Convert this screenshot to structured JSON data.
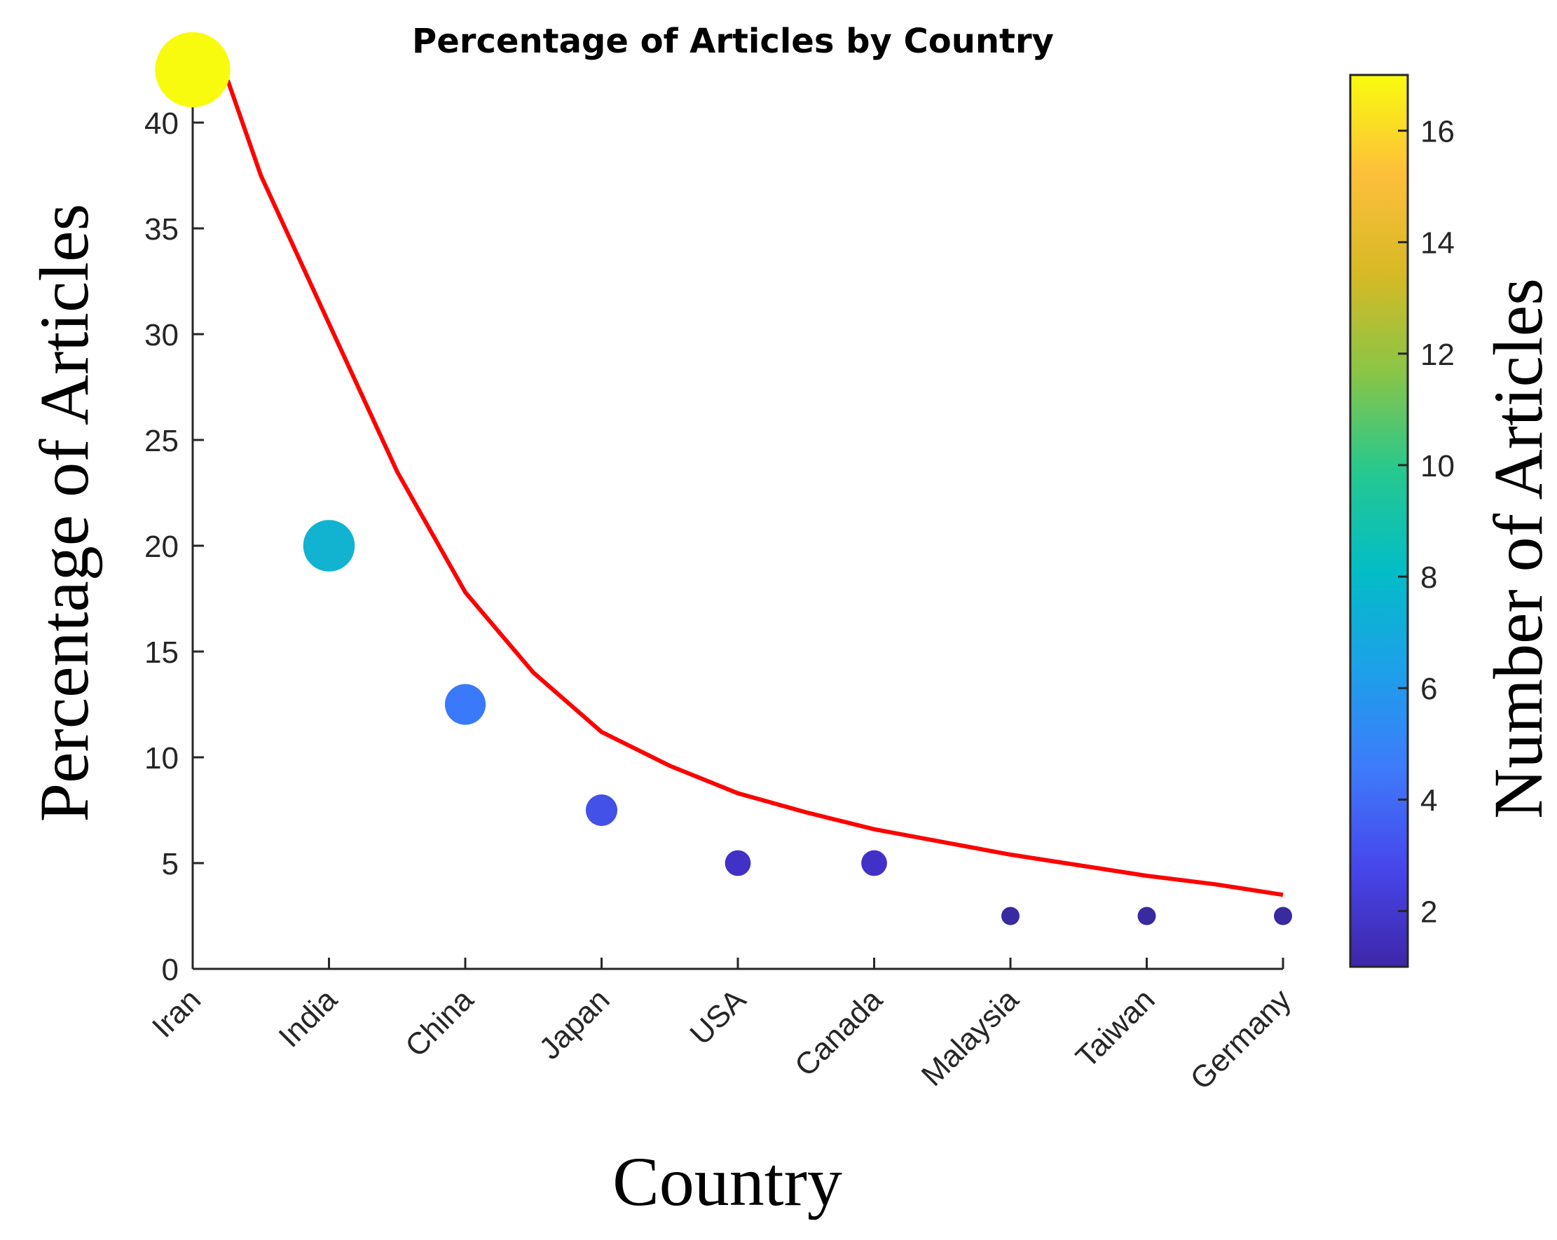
{
  "chart_data": {
    "type": "scatter",
    "title": "Percentage of Articles by Country",
    "xlabel": "Country",
    "ylabel": "Percentage of Articles",
    "categories": [
      "Iran",
      "India",
      "China",
      "Japan",
      "USA",
      "Canada",
      "Malaysia",
      "Taiwan",
      "Germany"
    ],
    "series": [
      {
        "values": [
          42.5,
          20,
          12.5,
          7.5,
          5,
          5,
          2.5,
          2.5,
          2.5
        ],
        "counts": [
          17,
          8,
          5,
          3,
          2,
          2,
          1,
          1,
          1
        ],
        "colors": [
          "#f9fb0e",
          "#12b3d0",
          "#3a79fa",
          "#4351e8",
          "#4231c6",
          "#4231c6",
          "#392aa0",
          "#392aa0",
          "#392aa0"
        ]
      },
      {
        "type": "line",
        "color": "#ff0000",
        "x": [
          0,
          0.5,
          1,
          1.5,
          2,
          2.5,
          3,
          3.5,
          4,
          4.5,
          5,
          5.5,
          6,
          6.5,
          7,
          7.5,
          8
        ],
        "values": [
          42,
          37.5,
          30.5,
          23.5,
          17.8,
          14,
          11.2,
          9.6,
          8.3,
          7.4,
          6.6,
          6,
          5.4,
          4.9,
          4.4,
          4,
          3.5
        ]
      }
    ],
    "ylim": [
      0,
      43
    ],
    "yticks": [
      0,
      5,
      10,
      15,
      20,
      25,
      30,
      35,
      40
    ],
    "colorbar": {
      "label": "Number of Articles",
      "range": [
        1,
        17
      ],
      "ticks": [
        2,
        4,
        6,
        8,
        10,
        12,
        14,
        16
      ],
      "colormap": [
        "#3e26a8",
        "#4746eb",
        "#3e7bfb",
        "#1da0e9",
        "#03bdc6",
        "#26c88f",
        "#8ac546",
        "#d7b925",
        "#fdbf3b",
        "#f9fb0e"
      ]
    },
    "grid": false
  }
}
